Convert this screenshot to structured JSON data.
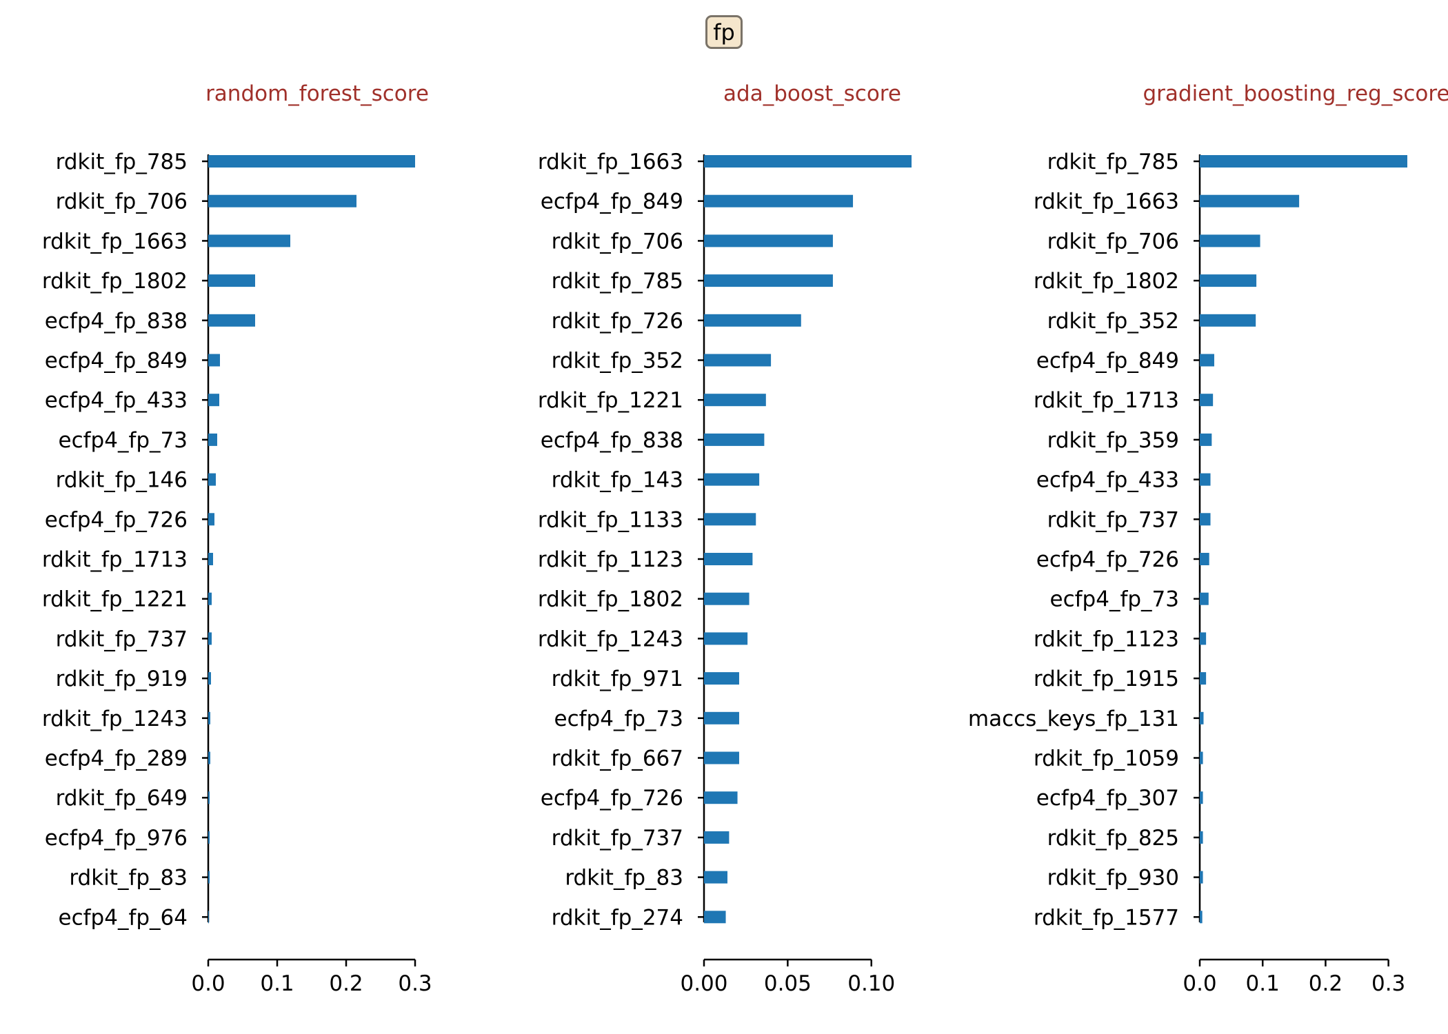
{
  "suptitle": "fp",
  "colors": {
    "bar": "#1f77b4",
    "title": "#a0302a",
    "axis": "#000000",
    "suptitle_bg": "#f5e6cc"
  },
  "chart_data": [
    {
      "type": "bar",
      "orientation": "horizontal",
      "title": "random_forest_score",
      "categories": [
        "rdkit_fp_785",
        "rdkit_fp_706",
        "rdkit_fp_1663",
        "rdkit_fp_1802",
        "ecfp4_fp_838",
        "ecfp4_fp_849",
        "ecfp4_fp_433",
        "ecfp4_fp_73",
        "rdkit_fp_146",
        "ecfp4_fp_726",
        "rdkit_fp_1713",
        "rdkit_fp_1221",
        "rdkit_fp_737",
        "rdkit_fp_919",
        "rdkit_fp_1243",
        "ecfp4_fp_289",
        "rdkit_fp_649",
        "ecfp4_fp_976",
        "rdkit_fp_83",
        "ecfp4_fp_64"
      ],
      "values": [
        0.3,
        0.215,
        0.119,
        0.068,
        0.068,
        0.017,
        0.016,
        0.013,
        0.011,
        0.009,
        0.007,
        0.005,
        0.005,
        0.004,
        0.003,
        0.003,
        0.002,
        0.002,
        0.002,
        0.001
      ],
      "xlim": [
        0,
        0.3
      ],
      "xticks": [
        0.0,
        0.1,
        0.2,
        0.3
      ],
      "xtick_labels": [
        "0.0",
        "0.1",
        "0.2",
        "0.3"
      ]
    },
    {
      "type": "bar",
      "orientation": "horizontal",
      "title": "ada_boost_score",
      "categories": [
        "rdkit_fp_1663",
        "ecfp4_fp_849",
        "rdkit_fp_706",
        "rdkit_fp_785",
        "rdkit_fp_726",
        "rdkit_fp_352",
        "rdkit_fp_1221",
        "ecfp4_fp_838",
        "rdkit_fp_143",
        "rdkit_fp_1133",
        "rdkit_fp_1123",
        "rdkit_fp_1802",
        "rdkit_fp_1243",
        "rdkit_fp_971",
        "ecfp4_fp_73",
        "rdkit_fp_667",
        "ecfp4_fp_726",
        "rdkit_fp_737",
        "rdkit_fp_83",
        "rdkit_fp_274"
      ],
      "values": [
        0.124,
        0.089,
        0.077,
        0.077,
        0.058,
        0.04,
        0.037,
        0.036,
        0.033,
        0.031,
        0.029,
        0.027,
        0.026,
        0.021,
        0.021,
        0.021,
        0.02,
        0.015,
        0.014,
        0.013
      ],
      "xlim": [
        0,
        0.124
      ],
      "xticks": [
        0.0,
        0.05,
        0.1
      ],
      "xtick_labels": [
        "0.00",
        "0.05",
        "0.10"
      ]
    },
    {
      "type": "bar",
      "orientation": "horizontal",
      "title": "gradient_boosting_reg_score",
      "categories": [
        "rdkit_fp_785",
        "rdkit_fp_1663",
        "rdkit_fp_706",
        "rdkit_fp_1802",
        "rdkit_fp_352",
        "ecfp4_fp_849",
        "rdkit_fp_1713",
        "rdkit_fp_359",
        "ecfp4_fp_433",
        "rdkit_fp_737",
        "ecfp4_fp_726",
        "ecfp4_fp_73",
        "rdkit_fp_1123",
        "rdkit_fp_1915",
        "maccs_keys_fp_131",
        "rdkit_fp_1059",
        "ecfp4_fp_307",
        "rdkit_fp_825",
        "rdkit_fp_930",
        "rdkit_fp_1577"
      ],
      "values": [
        0.33,
        0.158,
        0.096,
        0.09,
        0.089,
        0.023,
        0.021,
        0.019,
        0.017,
        0.017,
        0.015,
        0.014,
        0.01,
        0.01,
        0.006,
        0.005,
        0.005,
        0.005,
        0.005,
        0.004
      ],
      "xlim": [
        0,
        0.33
      ],
      "xticks": [
        0.0,
        0.1,
        0.2,
        0.3
      ],
      "xtick_labels": [
        "0.0",
        "0.1",
        "0.2",
        "0.3"
      ]
    }
  ]
}
